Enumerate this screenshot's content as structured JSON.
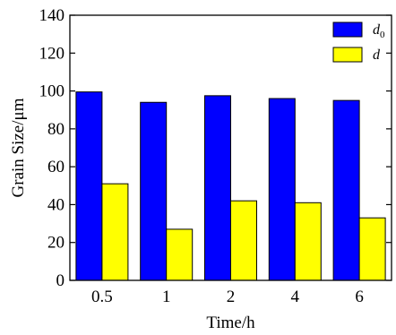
{
  "chart_data": {
    "type": "bar",
    "title": "",
    "xlabel": "Time/h",
    "ylabel": "Grain Size/μm",
    "categories": [
      "0.5",
      "1",
      "2",
      "4",
      "6"
    ],
    "ylim": [
      0,
      140
    ],
    "yticks": [
      "0",
      "20",
      "40",
      "60",
      "80",
      "100",
      "120",
      "140"
    ],
    "grid": false,
    "legend_position": "top-right",
    "series": [
      {
        "name": "d",
        "subscript": "0",
        "color": "#0000ff",
        "values": [
          99.5,
          94,
          97.5,
          96,
          95
        ]
      },
      {
        "name": "d",
        "subscript": "",
        "color": "#ffff00",
        "values": [
          51,
          27,
          42,
          41,
          33
        ]
      }
    ]
  }
}
